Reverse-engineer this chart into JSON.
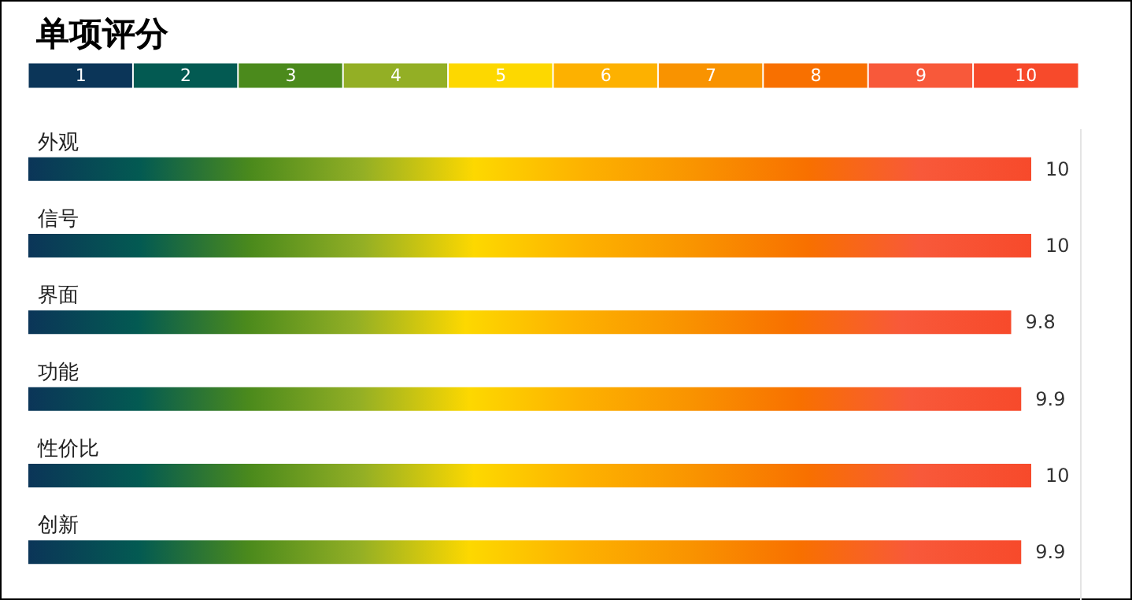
{
  "chart_data": [
    {
      "type": "heatmap",
      "title": "单项评分",
      "categories": [
        null,
        null,
        null,
        null,
        null,
        null,
        null,
        null,
        null,
        null
      ],
      "y_categories": [
        null
      ],
      "cells": [
        [
          1,
          2,
          3,
          4,
          5,
          6,
          7,
          8,
          9,
          10
        ]
      ],
      "data_labels": true,
      "colors": [
        "#0b3558",
        "#035a52",
        "#4b8a1c",
        "#93af25",
        "#fdd800",
        "#fdb100",
        "#f99300",
        "#f87000",
        "#f8593a",
        "#f74a2b"
      ]
    },
    {
      "type": "bar",
      "orientation": "horizontal",
      "categories": [
        "外观",
        "信号",
        "界面",
        "功能",
        "性价比",
        "创新"
      ],
      "data_labels": true,
      "series": [
        {
          "values": [
            10,
            10,
            9.8,
            9.9,
            10,
            9.9
          ]
        }
      ]
    }
  ]
}
